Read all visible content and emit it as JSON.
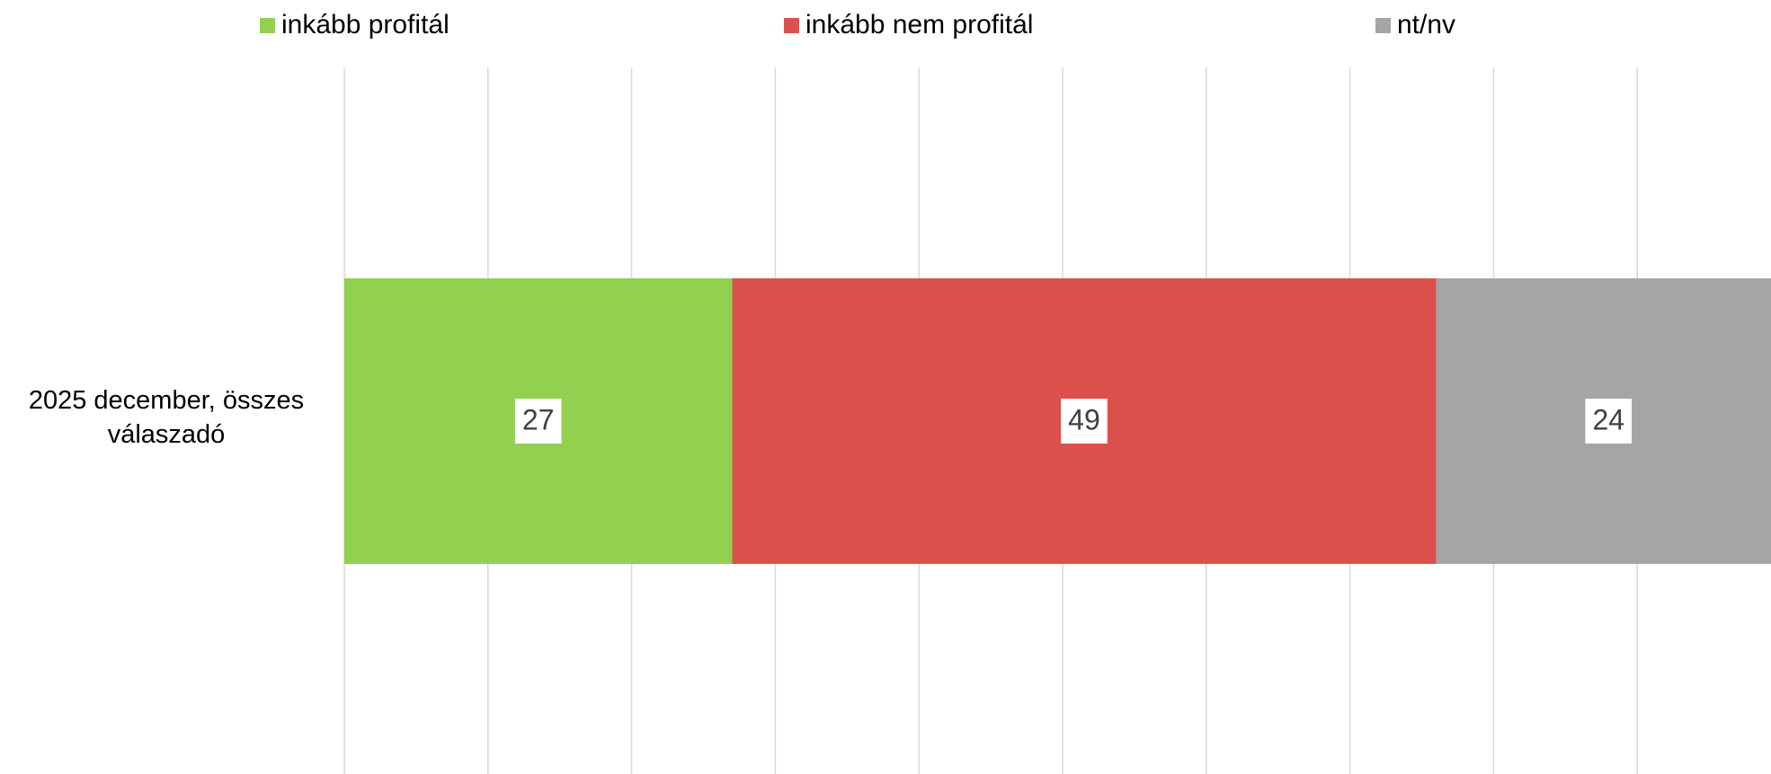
{
  "chart_data": {
    "type": "stacked-bar-horizontal",
    "categories": [
      "2025 december, összes válaszadó"
    ],
    "series": [
      {
        "name": "inkább profitál",
        "color": "#92d050",
        "values": [
          27
        ]
      },
      {
        "name": "inkább nem profitál",
        "color": "#dc514b",
        "values": [
          49
        ]
      },
      {
        "name": "nt/nv",
        "color": "#a5a5a5",
        "values": [
          24
        ]
      }
    ],
    "xlim": [
      0,
      100
    ],
    "xticks": [
      0,
      10,
      20,
      30,
      40,
      50,
      60,
      70,
      80,
      90,
      100
    ],
    "grid": true,
    "legend": "top"
  }
}
